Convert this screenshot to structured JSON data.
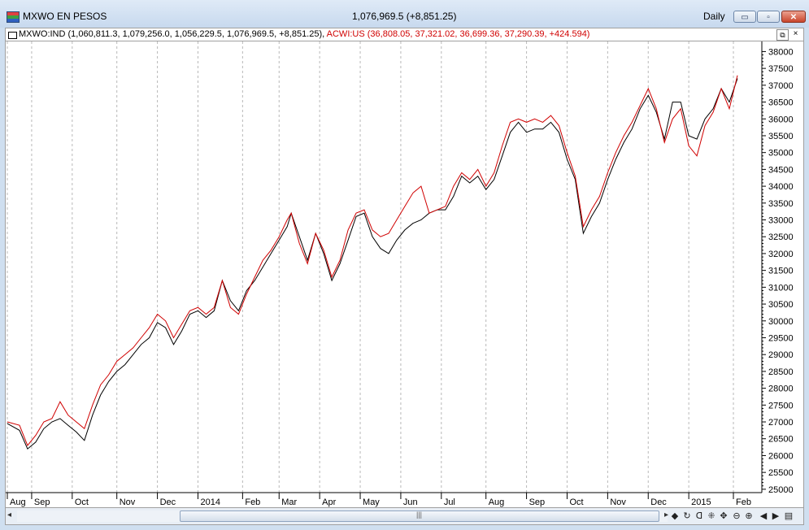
{
  "window": {
    "title": "MXWO EN PESOS",
    "last_value": "1,076,969.5 (+8,851.25)",
    "period": "Daily",
    "buttons": {
      "minimize": "▭",
      "maximize": "▫",
      "close": "✕"
    }
  },
  "legend": {
    "series1_text": "MXWO:IND (1,060,811.3, 1,079,256.0, 1,056,229.5, 1,076,969.5, +8,851.25),",
    "series2_text": "ACWI:US (36,808.05, 37,321.02, 36,699.36, 37,290.39, +424.594)",
    "restore_icon": "⧉",
    "close_icon": "×"
  },
  "toolbar": {
    "scroll_left": "◂",
    "scroll_right": "▸",
    "thumb_grip": "|||",
    "tools": [
      "◆",
      "↻",
      "ᗡ",
      "⁜",
      "✥",
      "⊖",
      "⊕",
      "◀",
      "▶",
      "▤"
    ]
  },
  "chart_data": {
    "type": "line",
    "title": "MXWO EN PESOS",
    "ylim": [
      24900,
      38300
    ],
    "y_ticks": [
      25000,
      25500,
      26000,
      26500,
      27000,
      27500,
      28000,
      28500,
      29000,
      29500,
      30000,
      30500,
      31000,
      31500,
      32000,
      32500,
      33000,
      33500,
      34000,
      34500,
      35000,
      35500,
      36000,
      36500,
      37000,
      37500,
      38000
    ],
    "x_labels": [
      "Aug",
      "Sep",
      "Oct",
      "Nov",
      "Dec",
      "2014",
      "Feb",
      "Mar",
      "Apr",
      "May",
      "Jun",
      "Jul",
      "Aug",
      "Sep",
      "Oct",
      "Nov",
      "Dec",
      "2015",
      "Feb"
    ],
    "x_index_range": [
      0,
      181
    ],
    "label_index": [
      0,
      6,
      16,
      27,
      37,
      47,
      58,
      67,
      77,
      87,
      97,
      107,
      118,
      128,
      138,
      148,
      158,
      168,
      179
    ],
    "grid": "vertical dashed at month starts",
    "series": [
      {
        "name": "MXWO:IND",
        "color": "#000000",
        "points": [
          [
            0,
            26950
          ],
          [
            3,
            26750
          ],
          [
            5,
            26200
          ],
          [
            7,
            26400
          ],
          [
            9,
            26800
          ],
          [
            11,
            27000
          ],
          [
            13,
            27100
          ],
          [
            15,
            26900
          ],
          [
            17,
            26700
          ],
          [
            19,
            26450
          ],
          [
            21,
            27200
          ],
          [
            23,
            27800
          ],
          [
            25,
            28200
          ],
          [
            27,
            28500
          ],
          [
            29,
            28700
          ],
          [
            31,
            29000
          ],
          [
            33,
            29300
          ],
          [
            35,
            29500
          ],
          [
            37,
            29950
          ],
          [
            39,
            29800
          ],
          [
            41,
            29300
          ],
          [
            43,
            29700
          ],
          [
            45,
            30200
          ],
          [
            47,
            30300
          ],
          [
            49,
            30100
          ],
          [
            51,
            30300
          ],
          [
            53,
            31200
          ],
          [
            55,
            30600
          ],
          [
            57,
            30300
          ],
          [
            59,
            30900
          ],
          [
            61,
            31200
          ],
          [
            63,
            31600
          ],
          [
            65,
            32000
          ],
          [
            67,
            32400
          ],
          [
            69,
            32800
          ],
          [
            70,
            33200
          ],
          [
            72,
            32500
          ],
          [
            74,
            31800
          ],
          [
            76,
            32600
          ],
          [
            78,
            32000
          ],
          [
            80,
            31200
          ],
          [
            82,
            31700
          ],
          [
            84,
            32400
          ],
          [
            86,
            33100
          ],
          [
            88,
            33200
          ],
          [
            90,
            32500
          ],
          [
            92,
            32150
          ],
          [
            94,
            32000
          ],
          [
            96,
            32400
          ],
          [
            98,
            32700
          ],
          [
            100,
            32900
          ],
          [
            102,
            33000
          ],
          [
            104,
            33200
          ],
          [
            106,
            33300
          ],
          [
            108,
            33300
          ],
          [
            110,
            33700
          ],
          [
            112,
            34300
          ],
          [
            114,
            34100
          ],
          [
            116,
            34300
          ],
          [
            118,
            33900
          ],
          [
            120,
            34200
          ],
          [
            122,
            34900
          ],
          [
            124,
            35600
          ],
          [
            126,
            35900
          ],
          [
            128,
            35600
          ],
          [
            130,
            35700
          ],
          [
            132,
            35700
          ],
          [
            134,
            35900
          ],
          [
            136,
            35600
          ],
          [
            138,
            34800
          ],
          [
            140,
            34200
          ],
          [
            142,
            32600
          ],
          [
            144,
            33100
          ],
          [
            146,
            33500
          ],
          [
            148,
            34200
          ],
          [
            150,
            34800
          ],
          [
            152,
            35300
          ],
          [
            154,
            35700
          ],
          [
            156,
            36300
          ],
          [
            158,
            36700
          ],
          [
            160,
            36200
          ],
          [
            162,
            35400
          ],
          [
            164,
            36500
          ],
          [
            166,
            36500
          ],
          [
            168,
            35500
          ],
          [
            170,
            35400
          ],
          [
            172,
            36000
          ],
          [
            174,
            36300
          ],
          [
            176,
            36900
          ],
          [
            178,
            36500
          ],
          [
            180,
            37200
          ]
        ]
      },
      {
        "name": "ACWI:US",
        "color": "#d00000",
        "points": [
          [
            0,
            27000
          ],
          [
            3,
            26900
          ],
          [
            5,
            26300
          ],
          [
            7,
            26600
          ],
          [
            9,
            27000
          ],
          [
            11,
            27100
          ],
          [
            13,
            27600
          ],
          [
            15,
            27200
          ],
          [
            17,
            27000
          ],
          [
            19,
            26800
          ],
          [
            21,
            27500
          ],
          [
            23,
            28100
          ],
          [
            25,
            28400
          ],
          [
            27,
            28800
          ],
          [
            29,
            29000
          ],
          [
            31,
            29200
          ],
          [
            33,
            29500
          ],
          [
            35,
            29800
          ],
          [
            37,
            30200
          ],
          [
            39,
            30000
          ],
          [
            41,
            29500
          ],
          [
            43,
            29900
          ],
          [
            45,
            30300
          ],
          [
            47,
            30400
          ],
          [
            49,
            30200
          ],
          [
            51,
            30400
          ],
          [
            53,
            31200
          ],
          [
            55,
            30400
          ],
          [
            57,
            30200
          ],
          [
            59,
            30800
          ],
          [
            61,
            31300
          ],
          [
            63,
            31800
          ],
          [
            65,
            32100
          ],
          [
            67,
            32500
          ],
          [
            69,
            33000
          ],
          [
            70,
            33200
          ],
          [
            72,
            32300
          ],
          [
            74,
            31700
          ],
          [
            76,
            32600
          ],
          [
            78,
            32100
          ],
          [
            80,
            31300
          ],
          [
            82,
            31800
          ],
          [
            84,
            32700
          ],
          [
            86,
            33200
          ],
          [
            88,
            33300
          ],
          [
            90,
            32700
          ],
          [
            92,
            32500
          ],
          [
            94,
            32600
          ],
          [
            96,
            33000
          ],
          [
            98,
            33400
          ],
          [
            100,
            33800
          ],
          [
            102,
            34000
          ],
          [
            104,
            33200
          ],
          [
            106,
            33300
          ],
          [
            108,
            33400
          ],
          [
            110,
            34000
          ],
          [
            112,
            34400
          ],
          [
            114,
            34200
          ],
          [
            116,
            34500
          ],
          [
            118,
            34000
          ],
          [
            120,
            34400
          ],
          [
            122,
            35200
          ],
          [
            124,
            35900
          ],
          [
            126,
            36000
          ],
          [
            128,
            35900
          ],
          [
            130,
            36000
          ],
          [
            132,
            35900
          ],
          [
            134,
            36100
          ],
          [
            136,
            35800
          ],
          [
            138,
            35000
          ],
          [
            140,
            34300
          ],
          [
            142,
            32800
          ],
          [
            144,
            33300
          ],
          [
            146,
            33700
          ],
          [
            148,
            34400
          ],
          [
            150,
            35000
          ],
          [
            152,
            35500
          ],
          [
            154,
            35900
          ],
          [
            156,
            36400
          ],
          [
            158,
            36900
          ],
          [
            160,
            36300
          ],
          [
            162,
            35300
          ],
          [
            164,
            36000
          ],
          [
            166,
            36300
          ],
          [
            168,
            35200
          ],
          [
            170,
            34900
          ],
          [
            172,
            35800
          ],
          [
            174,
            36200
          ],
          [
            176,
            36900
          ],
          [
            178,
            36300
          ],
          [
            180,
            37290
          ]
        ]
      }
    ]
  }
}
